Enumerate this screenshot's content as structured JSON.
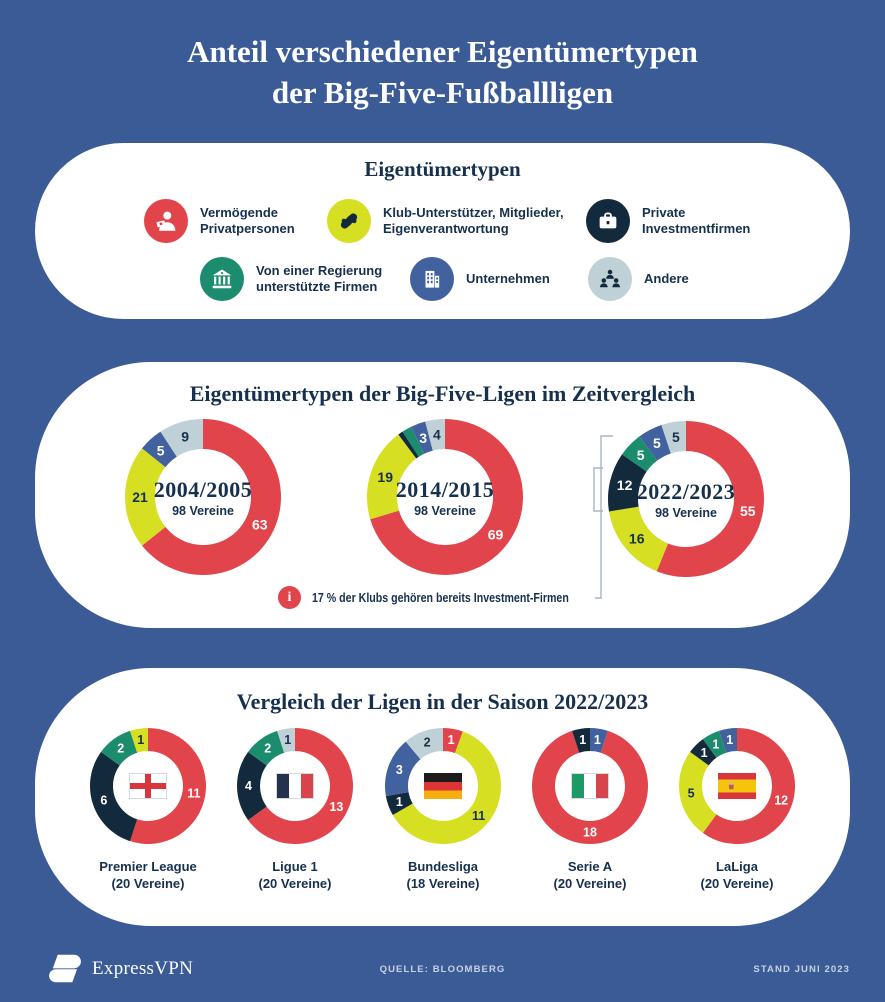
{
  "page": {
    "background": "#3b5b96",
    "title": {
      "line1": "Anteil verschiedener Eigentümertypen",
      "line2": "der Big-Five-Fußballligen"
    }
  },
  "colors": {
    "privatpersonen": "#e2444b",
    "klub": "#d6df22",
    "investment": "#13293c",
    "regierung": "#1b8c6d",
    "unternehmen": "#41629e",
    "andere": "#bfd1d6",
    "text_dark": "#16304d",
    "note_red": "#e2444b",
    "bracket": "#a7b6c2",
    "footer_text": "#c7d2e4"
  },
  "legend": {
    "title": "Eigentümertypen",
    "items": [
      {
        "icon": "person-money-icon",
        "owner": "privatpersonen",
        "color": "#e2444b",
        "label": "Vermögende\nPrivatpersonen"
      },
      {
        "icon": "handshake-icon",
        "owner": "klub",
        "color": "#d6df22",
        "label": "Klub-Unterstützer, Mitglieder,\nEigenverantwortung"
      },
      {
        "icon": "briefcase-icon",
        "owner": "investment",
        "color": "#13293c",
        "label": "Private\nInvestmentfirmen"
      },
      {
        "icon": "bank-icon",
        "owner": "regierung",
        "color": "#1b8c6d",
        "label": "Von einer Regierung\nunterstützte Firmen"
      },
      {
        "icon": "building-icon",
        "owner": "unternehmen",
        "color": "#41629e",
        "label": "Unternehmen"
      },
      {
        "icon": "people-icon",
        "owner": "andere",
        "color": "#bfd1d6",
        "label": "Andere"
      }
    ]
  },
  "timeline": {
    "title": "Eigentümertypen der Big-Five-Ligen im Zeitvergleich",
    "note_icon": "i",
    "note": "17 % der Klubs gehören bereits Investment-Firmen"
  },
  "leagues": {
    "title": "Vergleich der Ligen in der Saison 2022/2023"
  },
  "chart_data": [
    {
      "type": "pie",
      "variant": "donut",
      "title": "2004/2005",
      "subtitle": "98 Vereine",
      "total": 98,
      "segments": [
        {
          "owner": "privatpersonen",
          "category": "Vermögende Privatpersonen",
          "value": 63,
          "label": "63"
        },
        {
          "owner": "klub",
          "category": "Klub-Unterstützer, Mitglieder, Eigenverantwortung",
          "value": 21,
          "label": "21"
        },
        {
          "owner": "unternehmen",
          "category": "Unternehmen",
          "value": 5,
          "label": "5"
        },
        {
          "owner": "andere",
          "category": "Andere",
          "value": 9,
          "label": "9"
        }
      ]
    },
    {
      "type": "pie",
      "variant": "donut",
      "title": "2014/2015",
      "subtitle": "98 Vereine",
      "total": 98,
      "segments": [
        {
          "owner": "privatpersonen",
          "category": "Vermögende Privatpersonen",
          "value": 69,
          "label": "69"
        },
        {
          "owner": "klub",
          "category": "Klub-Unterstützer, Mitglieder, Eigenverantwortung",
          "value": 19,
          "label": "19"
        },
        {
          "owner": "investment",
          "category": "Private Investmentfirmen",
          "value": 1,
          "label": ""
        },
        {
          "owner": "regierung",
          "category": "Von einer Regierung unterstützte Firmen",
          "value": 2,
          "label": ""
        },
        {
          "owner": "unternehmen",
          "category": "Unternehmen",
          "value": 3,
          "label": "3"
        },
        {
          "owner": "andere",
          "category": "Andere",
          "value": 4,
          "label": "4"
        }
      ]
    },
    {
      "type": "pie",
      "variant": "donut",
      "title": "2022/2023",
      "subtitle": "98 Vereine",
      "total": 98,
      "segments": [
        {
          "owner": "privatpersonen",
          "category": "Vermögende Privatpersonen",
          "value": 55,
          "label": "55"
        },
        {
          "owner": "klub",
          "category": "Klub-Unterstützer, Mitglieder, Eigenverantwortung",
          "value": 16,
          "label": "16"
        },
        {
          "owner": "investment",
          "category": "Private Investmentfirmen",
          "value": 12,
          "label": "12"
        },
        {
          "owner": "regierung",
          "category": "Von einer Regierung unterstützte Firmen",
          "value": 5,
          "label": "5"
        },
        {
          "owner": "unternehmen",
          "category": "Unternehmen",
          "value": 5,
          "label": "5"
        },
        {
          "owner": "andere",
          "category": "Andere",
          "value": 5,
          "label": "5"
        }
      ]
    },
    {
      "type": "pie",
      "variant": "donut",
      "title": "Premier League",
      "subtitle": "(20 Vereine)",
      "total": 20,
      "flag": "england",
      "segments": [
        {
          "owner": "privatpersonen",
          "category": "Vermögende Privatpersonen",
          "value": 11,
          "label": "11"
        },
        {
          "owner": "investment",
          "category": "Private Investmentfirmen",
          "value": 6,
          "label": "6"
        },
        {
          "owner": "regierung",
          "category": "Von einer Regierung unterstützte Firmen",
          "value": 2,
          "label": "2"
        },
        {
          "owner": "klub",
          "category": "Klub-Unterstützer, Mitglieder, Eigenverantwortung",
          "value": 1,
          "label": "1"
        }
      ]
    },
    {
      "type": "pie",
      "variant": "donut",
      "title": "Ligue 1",
      "subtitle": "(20 Vereine)",
      "total": 20,
      "flag": "france",
      "segments": [
        {
          "owner": "privatpersonen",
          "category": "Vermögende Privatpersonen",
          "value": 13,
          "label": "13"
        },
        {
          "owner": "investment",
          "category": "Private Investmentfirmen",
          "value": 4,
          "label": "4"
        },
        {
          "owner": "regierung",
          "category": "Von einer Regierung unterstützte Firmen",
          "value": 2,
          "label": "2"
        },
        {
          "owner": "andere",
          "category": "Andere",
          "value": 1,
          "label": "1"
        }
      ]
    },
    {
      "type": "pie",
      "variant": "donut",
      "title": "Bundesliga",
      "subtitle": "(18 Vereine)",
      "total": 18,
      "flag": "germany",
      "segments": [
        {
          "owner": "privatpersonen",
          "category": "Vermögende Privatpersonen",
          "value": 1,
          "label": "1"
        },
        {
          "owner": "klub",
          "category": "Klub-Unterstützer, Mitglieder, Eigenverantwortung",
          "value": 11,
          "label": "11"
        },
        {
          "owner": "investment",
          "category": "Private Investmentfirmen",
          "value": 1,
          "label": "1"
        },
        {
          "owner": "unternehmen",
          "category": "Unternehmen",
          "value": 3,
          "label": "3"
        },
        {
          "owner": "andere",
          "category": "Andere",
          "value": 2,
          "label": "2"
        }
      ]
    },
    {
      "type": "pie",
      "variant": "donut",
      "title": "Serie A",
      "subtitle": "(20 Vereine)",
      "total": 20,
      "flag": "italy",
      "segments": [
        {
          "owner": "unternehmen",
          "category": "Unternehmen",
          "value": 1,
          "label": "1"
        },
        {
          "owner": "privatpersonen",
          "category": "Vermögende Privatpersonen",
          "value": 18,
          "label": "18"
        },
        {
          "owner": "investment",
          "category": "Private Investmentfirmen",
          "value": 1,
          "label": "1"
        }
      ]
    },
    {
      "type": "pie",
      "variant": "donut",
      "title": "LaLiga",
      "subtitle": "(20 Vereine)",
      "total": 20,
      "flag": "spain",
      "segments": [
        {
          "owner": "privatpersonen",
          "category": "Vermögende Privatpersonen",
          "value": 12,
          "label": "12"
        },
        {
          "owner": "klub",
          "category": "Klub-Unterstützer, Mitglieder, Eigenverantwortung",
          "value": 5,
          "label": "5"
        },
        {
          "owner": "investment",
          "category": "Private Investmentfirmen",
          "value": 1,
          "label": "1"
        },
        {
          "owner": "regierung",
          "category": "Von einer Regierung unterstützte Firmen",
          "value": 1,
          "label": "1"
        },
        {
          "owner": "unternehmen",
          "category": "Unternehmen",
          "value": 1,
          "label": "1"
        }
      ]
    }
  ],
  "footer": {
    "brand": "ExpressVPN",
    "source": "QUELLE: BLOOMBERG",
    "stand": "STAND JUNI 2023"
  }
}
